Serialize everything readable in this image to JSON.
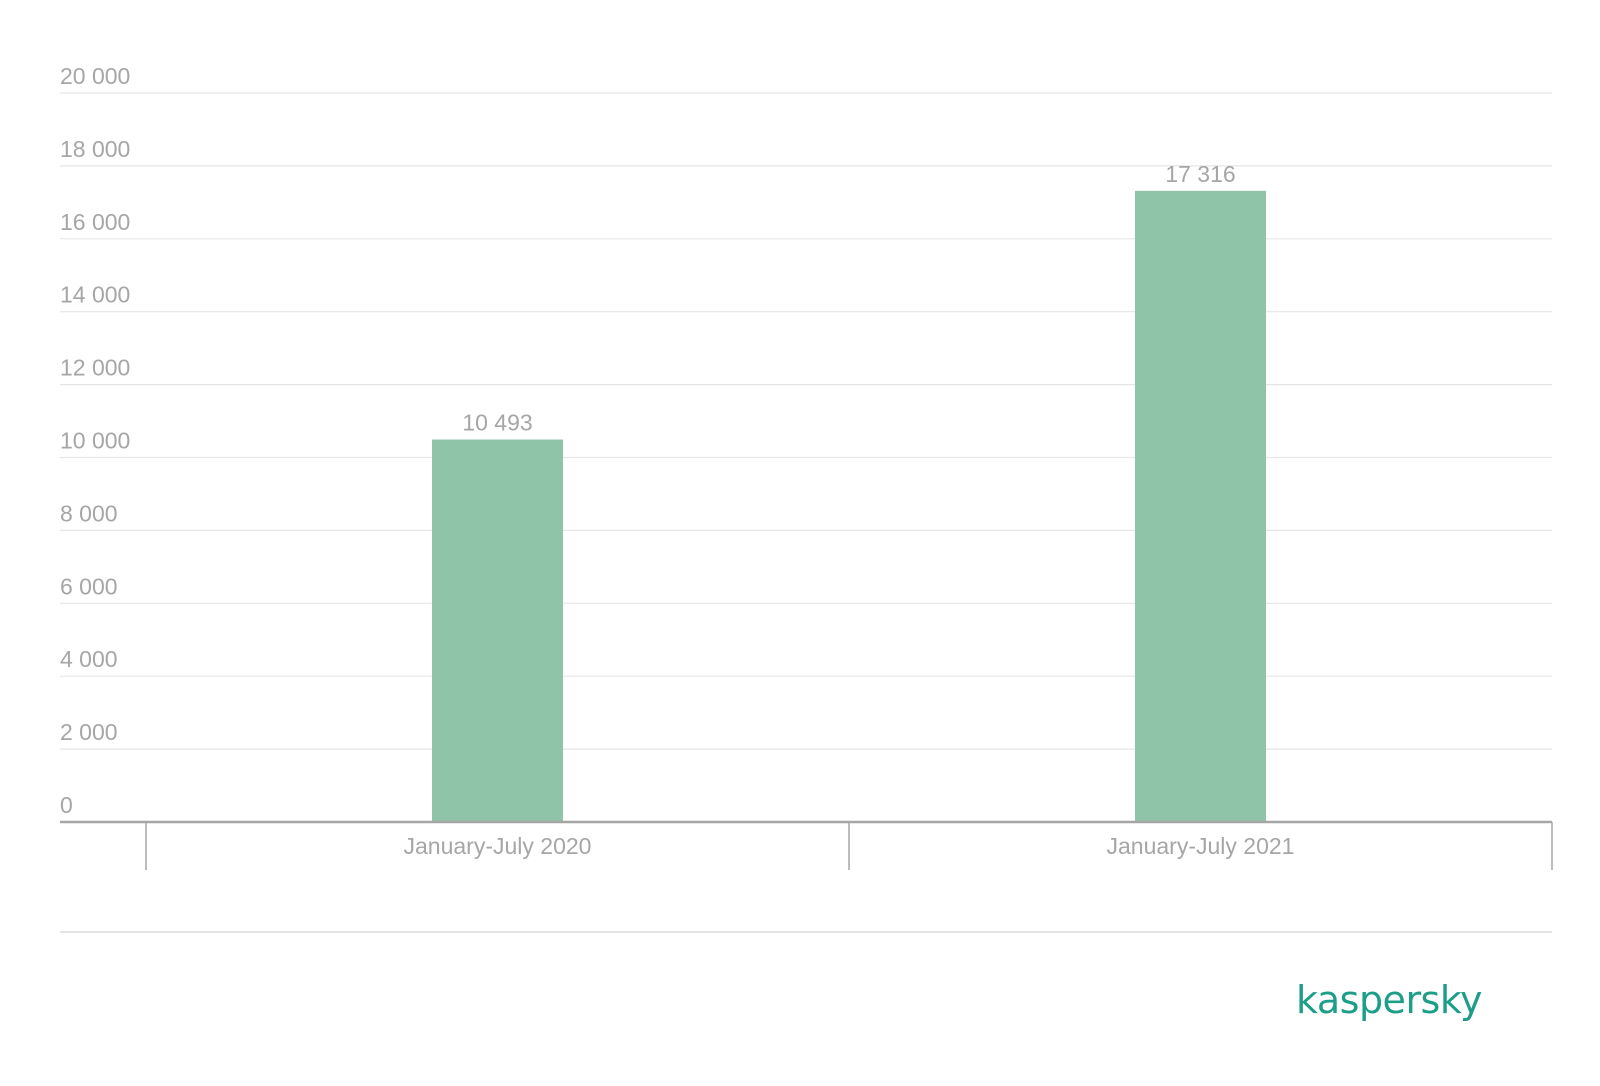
{
  "chart_data": {
    "type": "bar",
    "categories": [
      "January-July 2020",
      "January-July 2021"
    ],
    "values": [
      10493,
      17316
    ],
    "data_labels": [
      "10 493",
      "17 316"
    ],
    "yticks": [
      0,
      2000,
      4000,
      6000,
      8000,
      10000,
      12000,
      14000,
      16000,
      18000,
      20000
    ],
    "ytick_labels": [
      "0",
      "2 000",
      "4 000",
      "6 000",
      "8 000",
      "10 000",
      "12 000",
      "14 000",
      "16 000",
      "18 000",
      "20 000"
    ],
    "ylim": [
      0,
      20000
    ],
    "grid": true,
    "title": "",
    "xlabel": "",
    "ylabel": "",
    "bar_color": "#90c4a8"
  },
  "brand": {
    "logo_text": "kaspersky",
    "logo_color": "#1c9e88"
  }
}
